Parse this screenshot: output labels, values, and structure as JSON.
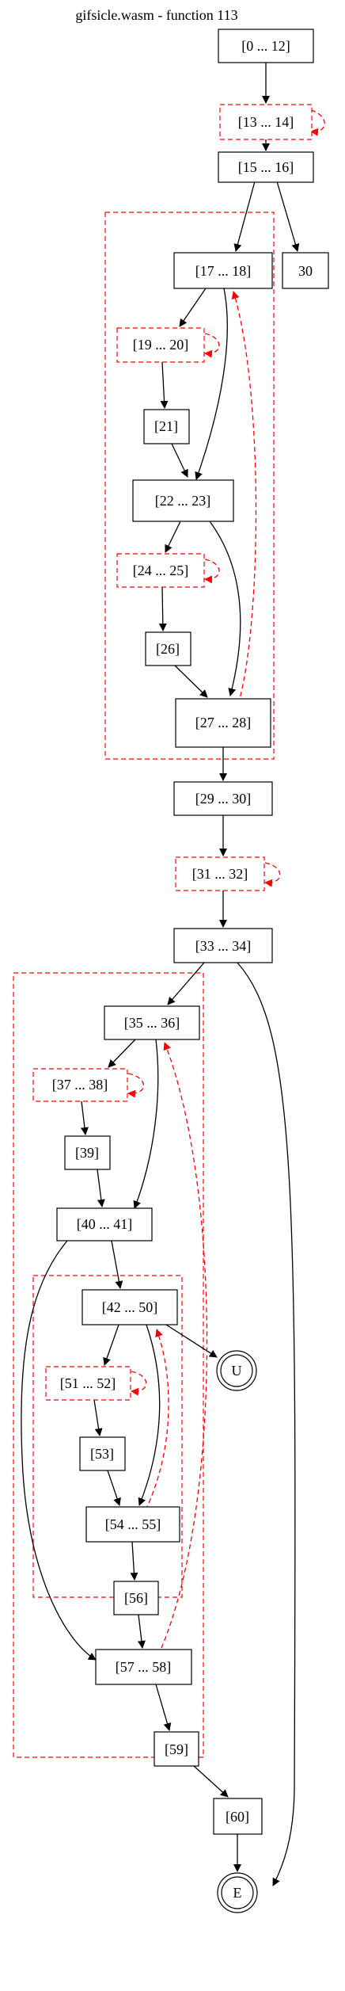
{
  "title": "gifsicle.wasm - function 113",
  "nodes": {
    "n0": "[0 ... 12]",
    "n13": "[13 ... 14]",
    "n15": "[15 ... 16]",
    "n30": "30",
    "n17": "[17 ... 18]",
    "n19": "[19 ... 20]",
    "n21": "[21]",
    "n22": "[22 ... 23]",
    "n24": "[24 ... 25]",
    "n26": "[26]",
    "n27": "[27 ... 28]",
    "n29": "[29 ... 30]",
    "n31": "[31 ... 32]",
    "n33": "[33 ... 34]",
    "n35": "[35 ... 36]",
    "n37": "[37 ... 38]",
    "n39": "[39]",
    "n40": "[40 ... 41]",
    "n42": "[42 ... 50]",
    "nU": "U",
    "n51": "[51 ... 52]",
    "n53": "[53]",
    "n54": "[54 ... 55]",
    "n56": "[56]",
    "n57": "[57 ... 58]",
    "n59": "[59]",
    "n60": "[60]",
    "nE": "E"
  }
}
